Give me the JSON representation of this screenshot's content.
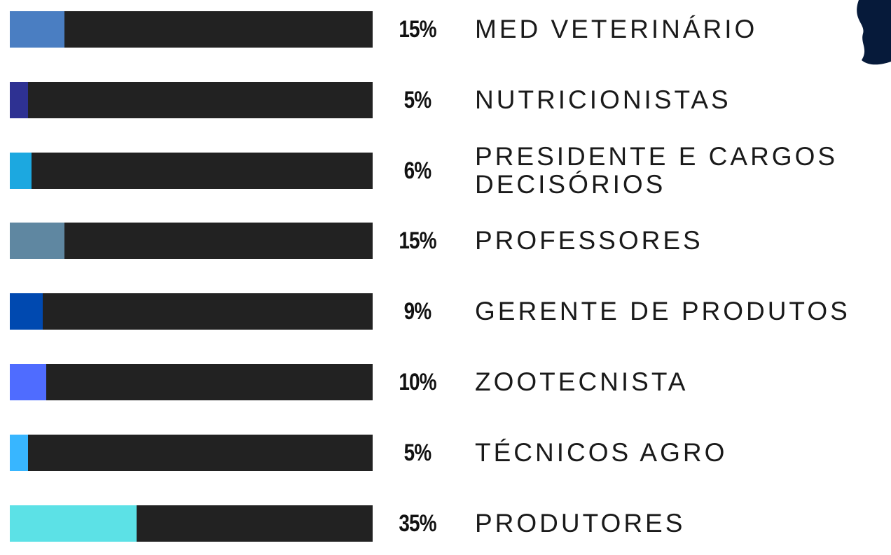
{
  "chart_data": {
    "type": "bar",
    "orientation": "horizontal",
    "categories": [
      "MED VETERINÁRIO",
      "NUTRICIONISTAS",
      "PRESIDENTE E CARGOS DECISÓRIOS",
      "PROFESSORES",
      "GERENTE DE PRODUTOS",
      "ZOOTECNISTA",
      "TÉCNICOS AGRO",
      "PRODUTORES"
    ],
    "values": [
      15,
      5,
      6,
      15,
      9,
      10,
      5,
      35
    ],
    "value_labels": [
      "15%",
      "5%",
      "6%",
      "15%",
      "9%",
      "10%",
      "5%",
      "35%"
    ],
    "colors": [
      "#4a7ec2",
      "#2e3192",
      "#1ca8e0",
      "#5f87a1",
      "#0049b0",
      "#4f6cff",
      "#38b6ff",
      "#5ce1e6"
    ],
    "track_color": "#222222",
    "xlim": [
      0,
      100
    ]
  }
}
